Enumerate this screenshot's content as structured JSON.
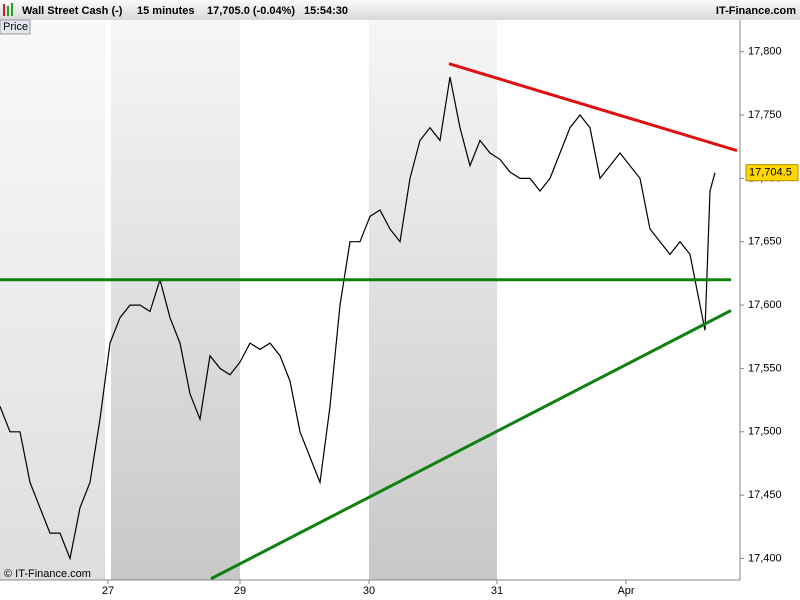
{
  "header": {
    "instrument": "Wall Street Cash (-)",
    "interval": "15 minutes",
    "quote": "17,705.0 (-0.04%)",
    "time": "15:54:30",
    "brand": "IT-Finance.com"
  },
  "chart_data": {
    "type": "line",
    "panel_label": "Price",
    "copyright": "© IT-Finance.com",
    "x": [
      0,
      2,
      4,
      6,
      8,
      10,
      12,
      14,
      16,
      18,
      20,
      22,
      24,
      26,
      28,
      30,
      32,
      34,
      36,
      38,
      40,
      42,
      44,
      46,
      48,
      50,
      52,
      54,
      56,
      58,
      60,
      62,
      64,
      66,
      68,
      70,
      72,
      74,
      76,
      78,
      80,
      82,
      84,
      86,
      88,
      90,
      92,
      94,
      96,
      98,
      100,
      102,
      104,
      106,
      108,
      110,
      112,
      114,
      116,
      118,
      120,
      122,
      124,
      126,
      128,
      130,
      132,
      134,
      136,
      138,
      140,
      141,
      142,
      143
    ],
    "series": [
      {
        "name": "Price",
        "color": "#000000",
        "values": [
          17520,
          17500,
          17500,
          17460,
          17440,
          17420,
          17420,
          17400,
          17440,
          17460,
          17510,
          17570,
          17590,
          17600,
          17600,
          17595,
          17620,
          17590,
          17570,
          17530,
          17510,
          17560,
          17550,
          17545,
          17555,
          17570,
          17565,
          17570,
          17560,
          17540,
          17500,
          17480,
          17460,
          17520,
          17600,
          17650,
          17650,
          17670,
          17675,
          17660,
          17650,
          17700,
          17730,
          17740,
          17730,
          17780,
          17740,
          17710,
          17730,
          17720,
          17715,
          17705,
          17700,
          17700,
          17690,
          17700,
          17720,
          17740,
          17750,
          17740,
          17700,
          17710,
          17720,
          17710,
          17700,
          17660,
          17650,
          17640,
          17650,
          17640,
          17600,
          17580,
          17690,
          17704.5
        ]
      }
    ],
    "current_marker": {
      "value": 17704.5,
      "label": "17,704.5"
    },
    "lines": [
      {
        "color": "#e01010",
        "x": [
          89.8,
          147.4
        ],
        "y": [
          17790.5,
          17721.9
        ]
      },
      {
        "color": "#108010",
        "x": [
          0,
          146.2
        ],
        "y": [
          17620,
          17620
        ]
      },
      {
        "color": "#108010",
        "x": [
          42.2,
          146.2
        ],
        "y": [
          17384,
          17595.7
        ]
      }
    ],
    "xlim": [
      0,
      148
    ],
    "ylim": [
      17383,
      17825
    ],
    "xticks": [
      {
        "value": 21.6,
        "label": "27"
      },
      {
        "value": 48,
        "label": "29"
      },
      {
        "value": 73.8,
        "label": "30"
      },
      {
        "value": 99.4,
        "label": "31"
      },
      {
        "value": 125.2,
        "label": "Apr"
      }
    ],
    "yticks": [
      {
        "value": 17400,
        "label": "17,400"
      },
      {
        "value": 17450,
        "label": "17,450"
      },
      {
        "value": 17500,
        "label": "17,500"
      },
      {
        "value": 17550,
        "label": "17,550"
      },
      {
        "value": 17600,
        "label": "17,600"
      },
      {
        "value": 17650,
        "label": "17,650"
      },
      {
        "value": 17700,
        "label": "17,700"
      },
      {
        "value": 17750,
        "label": "17,750"
      },
      {
        "value": 17800,
        "label": "17,800"
      }
    ]
  }
}
